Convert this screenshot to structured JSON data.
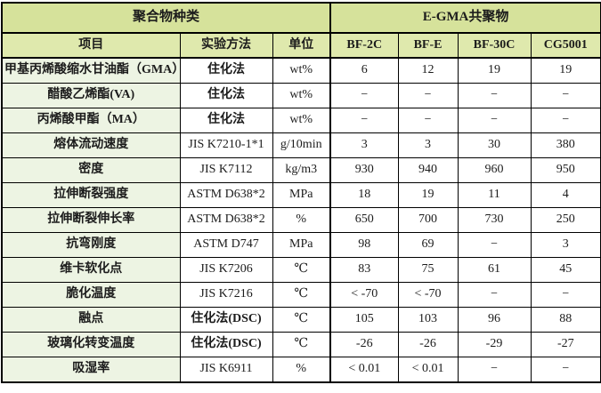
{
  "table": {
    "group_headers": {
      "left": "聚合物种类",
      "right": "E-GMA共聚物"
    },
    "columns": [
      "项目",
      "实验方法",
      "单位",
      "BF-2C",
      "BF-E",
      "BF-30C",
      "CG5001"
    ],
    "rows": [
      {
        "item": "甲基丙烯酸缩水甘油酯（GMA）",
        "method": "住化法",
        "unit": "wt%",
        "values": [
          "6",
          "12",
          "19",
          "19"
        ]
      },
      {
        "item": "醋酸乙烯酯(VA)",
        "method": "住化法",
        "unit": "wt%",
        "values": [
          "−",
          "−",
          "−",
          "−"
        ]
      },
      {
        "item": "丙烯酸甲酯（MA）",
        "method": "住化法",
        "unit": "wt%",
        "values": [
          "−",
          "−",
          "−",
          "−"
        ]
      },
      {
        "item": "熔体流动速度",
        "method": "JIS K7210-1*1",
        "unit": "g/10min",
        "values": [
          "3",
          "3",
          "30",
          "380"
        ]
      },
      {
        "item": "密度",
        "method": "JIS K7112",
        "unit": "kg/m3",
        "values": [
          "930",
          "940",
          "960",
          "950"
        ]
      },
      {
        "item": "拉伸断裂强度",
        "method": "ASTM D638*2",
        "unit": "MPa",
        "values": [
          "18",
          "19",
          "11",
          "4"
        ]
      },
      {
        "item": "拉伸断裂伸长率",
        "method": "ASTM D638*2",
        "unit": "%",
        "values": [
          "650",
          "700",
          "730",
          "250"
        ]
      },
      {
        "item": "抗弯刚度",
        "method": "ASTM D747",
        "unit": "MPa",
        "values": [
          "98",
          "69",
          "−",
          "3"
        ]
      },
      {
        "item": "维卡软化点",
        "method": "JIS K7206",
        "unit": "℃",
        "values": [
          "83",
          "75",
          "61",
          "45"
        ]
      },
      {
        "item": "脆化温度",
        "method": "JIS K7216",
        "unit": "℃",
        "values": [
          "< -70",
          "< -70",
          "−",
          "−"
        ]
      },
      {
        "item": "融点",
        "method": "住化法(DSC)",
        "unit": "℃",
        "values": [
          "105",
          "103",
          "96",
          "88"
        ]
      },
      {
        "item": "玻璃化转变温度",
        "method": "住化法(DSC)",
        "unit": "℃",
        "values": [
          "-26",
          "-26",
          "-29",
          "-27"
        ]
      },
      {
        "item": "吸湿率",
        "method": "JIS K6911",
        "unit": "%",
        "values": [
          "< 0.01",
          "< 0.01",
          "−",
          "−"
        ]
      }
    ],
    "colors": {
      "group_header_bg": "#d6e29b",
      "column_header_bg": "#dfe9ad",
      "item_column_bg": "#edf4e3",
      "body_bg": "#ffffff",
      "border": "#000000"
    }
  }
}
